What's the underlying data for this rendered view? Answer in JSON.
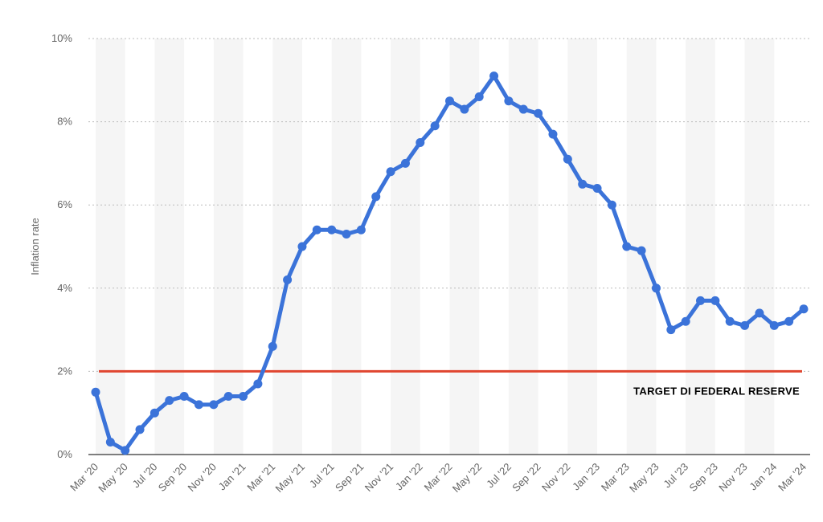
{
  "chart_data": {
    "type": "line",
    "ylabel": "Inflation rate",
    "xlabel": "",
    "ylim": [
      0,
      10
    ],
    "yticks": [
      0,
      2,
      4,
      6,
      8,
      10
    ],
    "ytick_labels": [
      "0%",
      "2%",
      "4%",
      "6%",
      "8%",
      "10%"
    ],
    "grid": "horizontal dotted",
    "x": [
      "Mar '20",
      "Apr '20",
      "May '20",
      "Jun '20",
      "Jul '20",
      "Aug '20",
      "Sep '20",
      "Oct '20",
      "Nov '20",
      "Dec '20",
      "Jan '21",
      "Feb '21",
      "Mar '21",
      "Apr '21",
      "May '21",
      "Jun '21",
      "Jul '21",
      "Aug '21",
      "Sep '21",
      "Oct '21",
      "Nov '21",
      "Dec '21",
      "Jan '22",
      "Feb '22",
      "Mar '22",
      "Apr '22",
      "May '22",
      "Jun '22",
      "Jul '22",
      "Aug '22",
      "Sep '22",
      "Oct '22",
      "Nov '22",
      "Dec '22",
      "Jan '23",
      "Feb '23",
      "Mar '23",
      "Apr '23",
      "May '23",
      "Jun '23",
      "Jul '23",
      "Aug '23",
      "Sep '23",
      "Oct '23",
      "Nov '23",
      "Dec '23",
      "Jan '24",
      "Feb '24",
      "Mar '24"
    ],
    "x_tick_labels": [
      "Mar '20",
      "May '20",
      "Jul '20",
      "Sep '20",
      "Nov '20",
      "Jan '21",
      "Mar '21",
      "May '21",
      "Jul '21",
      "Sep '21",
      "Nov '21",
      "Jan '22",
      "Mar '22",
      "May '22",
      "Jul '22",
      "Sep '22",
      "Nov '22",
      "Jan '23",
      "Mar '23",
      "May '23",
      "Jul '23",
      "Sep '23",
      "Nov '23",
      "Jan '24",
      "Mar '24"
    ],
    "series": [
      {
        "color": "#3b73d9",
        "values": [
          1.5,
          0.3,
          0.1,
          0.6,
          1.0,
          1.3,
          1.4,
          1.2,
          1.2,
          1.4,
          1.4,
          1.7,
          2.6,
          4.2,
          5.0,
          5.4,
          5.4,
          5.3,
          5.4,
          6.2,
          6.8,
          7.0,
          7.5,
          7.9,
          8.5,
          8.3,
          8.6,
          9.1,
          8.5,
          8.3,
          8.2,
          7.7,
          7.1,
          6.5,
          6.4,
          6.0,
          5.0,
          4.9,
          4.0,
          3.0,
          3.2,
          3.7,
          3.7,
          3.2,
          3.1,
          3.4,
          3.1,
          3.2,
          3.5
        ]
      }
    ],
    "reference_line": {
      "value": 2,
      "color": "#e0452f",
      "label": "TARGET DI FEDERAL RESERVE"
    },
    "colors": {
      "band": "#f5f5f5",
      "grid": "#bbbbbb",
      "axis": "#333333",
      "text": "#666666"
    }
  }
}
